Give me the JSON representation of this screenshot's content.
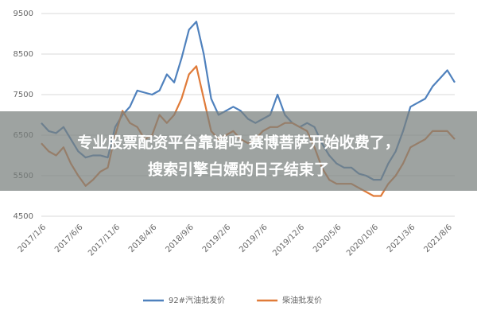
{
  "chart_data": {
    "type": "line",
    "annotations": [
      "专业股票配资平台靠谱吗 赛博菩萨开始收费了，",
      "搜索引擎白嫖的日子结束了"
    ],
    "categories": [
      "2017/1/6",
      null,
      null,
      null,
      null,
      "2017/6/6",
      null,
      null,
      null,
      null,
      "2017/11/6",
      null,
      null,
      null,
      null,
      "2018/4/6",
      null,
      null,
      null,
      null,
      "2018/9/6",
      null,
      null,
      null,
      null,
      "2019/2/6",
      null,
      null,
      null,
      null,
      "2019/7/6",
      null,
      null,
      null,
      null,
      "2019/12/6",
      null,
      null,
      null,
      null,
      "2020/5/6",
      null,
      null,
      null,
      null,
      "2020/10/6",
      null,
      null,
      null,
      null,
      "2021/3/6",
      null,
      null,
      null,
      null,
      "2021/8/6",
      null
    ],
    "series": [
      {
        "name": "92#汽油批发价",
        "color": "#4f81bd",
        "values": [
          6800,
          6600,
          6550,
          6700,
          6400,
          6100,
          5950,
          6000,
          6000,
          5950,
          6700,
          7000,
          7200,
          7600,
          7550,
          7500,
          7600,
          8000,
          7800,
          8400,
          9100,
          9300,
          8500,
          7400,
          7000,
          7100,
          7200,
          7100,
          6900,
          6800,
          6900,
          7000,
          7500,
          7000,
          6800,
          6700,
          6800,
          6700,
          6300,
          6000,
          5800,
          5700,
          5700,
          5550,
          5500,
          5400,
          5400,
          5800,
          6100,
          6600,
          7200,
          7300,
          7400,
          7700,
          7900,
          8100,
          7800
        ]
      },
      {
        "name": "柴油批发价",
        "color": "#e07b39",
        "values": [
          6300,
          6100,
          6000,
          6200,
          5800,
          5500,
          5250,
          5400,
          5600,
          5700,
          6500,
          7100,
          6800,
          6700,
          6400,
          6500,
          7000,
          6800,
          7000,
          7400,
          8000,
          8200,
          7400,
          6600,
          6400,
          6500,
          6600,
          6400,
          6300,
          6400,
          6600,
          6700,
          6700,
          6800,
          6800,
          6700,
          6600,
          6200,
          5700,
          5400,
          5300,
          5300,
          5300,
          5200,
          5100,
          5000,
          5000,
          5300,
          5500,
          5800,
          6200,
          6300,
          6400,
          6600,
          6600,
          6600,
          6400
        ]
      }
    ],
    "ylim": [
      4500,
      9500
    ],
    "yticks": [
      4500,
      5500,
      6500,
      7500,
      8500,
      9500
    ],
    "grid": true,
    "legend": "bottom"
  }
}
